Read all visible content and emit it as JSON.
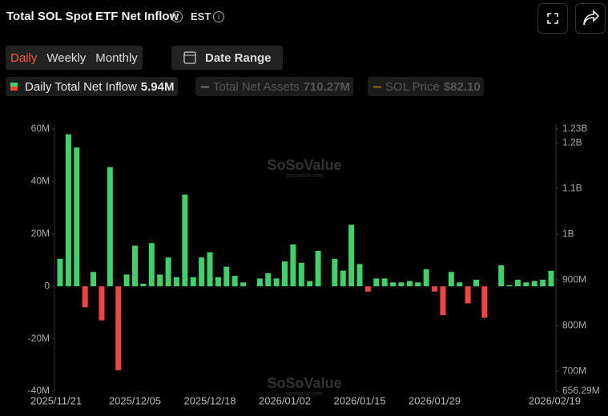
{
  "header": {
    "title": "Total SOL Spot ETF Net Inflow",
    "timezone": "EST"
  },
  "tabs": [
    "Daily",
    "Weekly",
    "Monthly"
  ],
  "date_range": "Date Range",
  "legend": [
    {
      "name": "Daily Total Net Inflow",
      "value": "5.94M"
    },
    {
      "name": "Total Net Assets",
      "value": "710.27M"
    },
    {
      "name": "SOL Price",
      "value": "$82.10"
    }
  ],
  "watermark": {
    "name": "SoSoValue",
    "url": "sosovalue.com"
  },
  "chart_data": {
    "type": "bar",
    "categories": [
      "2025/11/21",
      null,
      null,
      null,
      null,
      null,
      null,
      null,
      null,
      "2025/12/05",
      null,
      null,
      null,
      null,
      null,
      null,
      null,
      null,
      "2025/12/18",
      null,
      null,
      null,
      null,
      null,
      null,
      null,
      null,
      "2026/01/02",
      null,
      null,
      null,
      null,
      null,
      null,
      null,
      null,
      "2026/01/15",
      null,
      null,
      null,
      null,
      null,
      null,
      null,
      null,
      "2026/01/29",
      null,
      null,
      null,
      null,
      null,
      null,
      null,
      null,
      null,
      null,
      null,
      null,
      null,
      "2026/02/19"
    ],
    "values": [
      10.5,
      58,
      53,
      -8,
      5.5,
      -13,
      45.5,
      -32,
      4.5,
      15.5,
      1,
      16.5,
      4.5,
      11,
      3.5,
      35,
      3.5,
      11,
      13,
      3.5,
      7.5,
      4,
      1.5,
      0,
      3,
      5,
      3,
      9.5,
      16,
      9,
      2,
      13.5,
      0,
      10.5,
      6,
      23.5,
      8.5,
      -2,
      3,
      3,
      1.5,
      1.5,
      2,
      1.5,
      6.5,
      -2,
      -11,
      5.5,
      1.5,
      -6.5,
      2.5,
      -12,
      0,
      8,
      0.5,
      2.5,
      1.5,
      2,
      2.5,
      5.94
    ],
    "positive_color": "#3ed36a",
    "negative_color": "#f0453f",
    "ylim": [
      -40,
      60
    ],
    "yticks": [
      {
        "value": 60,
        "label": "60M"
      },
      {
        "value": 40,
        "label": "40M"
      },
      {
        "value": 20,
        "label": "20M"
      },
      0,
      {
        "value": -20,
        "label": "-20M"
      },
      {
        "value": -40,
        "label": "-40M"
      }
    ],
    "y2lim": [
      656.29,
      1230
    ],
    "y2ticks": [
      {
        "value": 1230,
        "label": "1.23B"
      },
      {
        "value": 1200,
        "label": "1.2B"
      },
      {
        "value": 1100,
        "label": "1.1B"
      },
      {
        "value": 1000,
        "label": "1B"
      },
      {
        "value": 900,
        "label": "900M"
      },
      {
        "value": 800,
        "label": "800M"
      },
      {
        "value": 700,
        "label": "700M"
      },
      {
        "value": 656.29,
        "label": "656.29M"
      }
    ],
    "grid": false
  }
}
